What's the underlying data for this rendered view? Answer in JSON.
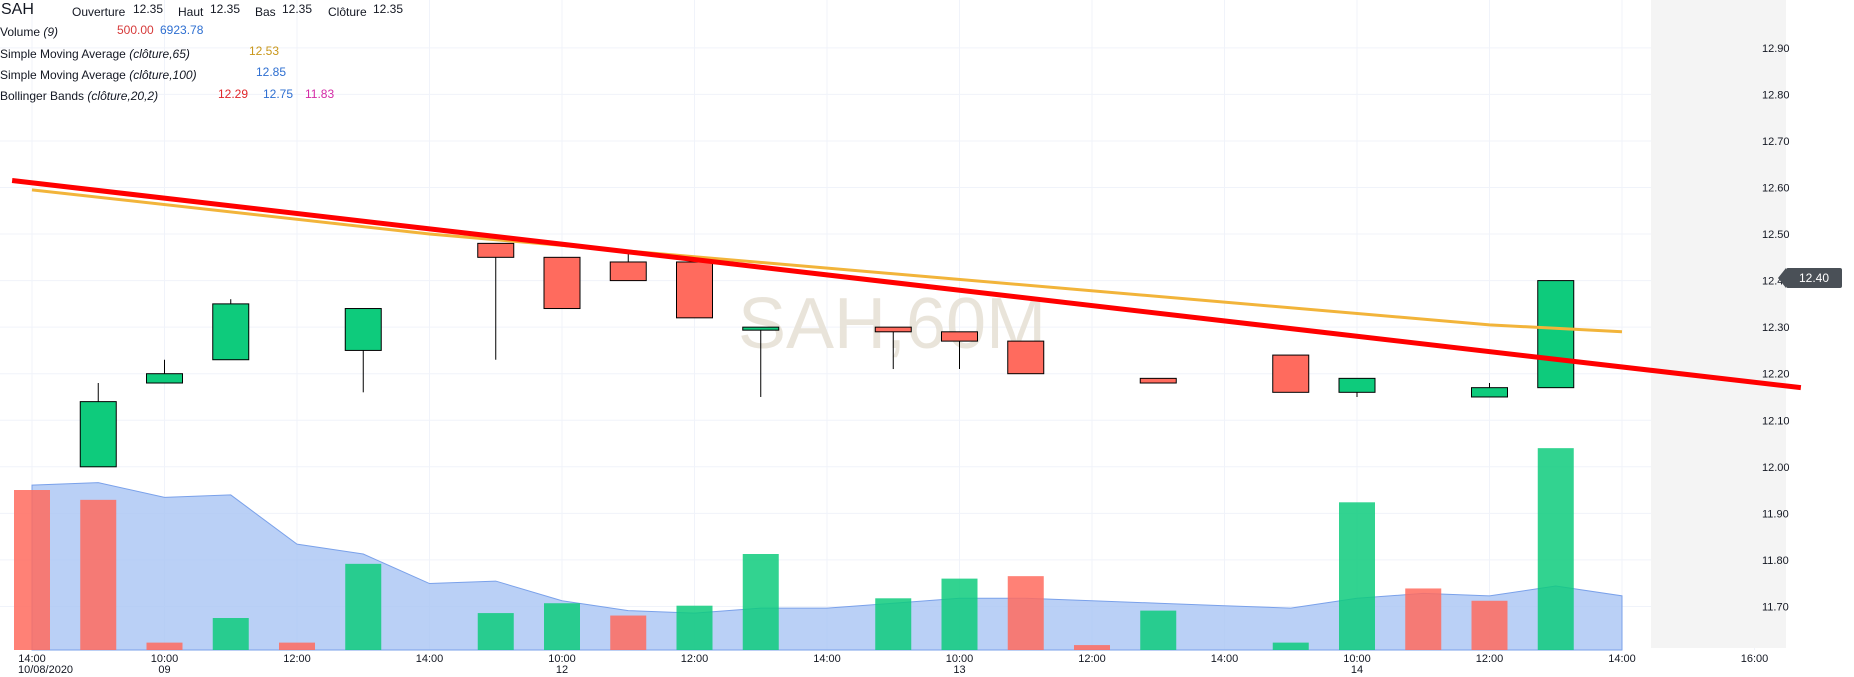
{
  "header": {
    "symbol": "SAH",
    "open_label": "Ouverture",
    "open_value": "12.35",
    "high_label": "Haut",
    "high_value": "12.35",
    "low_label": "Bas",
    "low_value": "12.35",
    "close_label": "Clôture",
    "close_value": "12.35"
  },
  "indicators": {
    "volume": {
      "label": "Volume",
      "params": "(9)",
      "value1": "500.00",
      "value2": "6923.78"
    },
    "sma65": {
      "label": "Simple Moving Average",
      "params": "(clôture,65)",
      "value": "12.53"
    },
    "sma100": {
      "label": "Simple Moving Average",
      "params": "(clôture,100)",
      "value": "12.85"
    },
    "bollinger": {
      "label": "Bollinger Bands",
      "params": "(clôture,20,2)",
      "middle": "12.29",
      "upper": "12.75",
      "lower": "11.83"
    }
  },
  "watermark": "SAH,60M",
  "last_price_tag": "12.40",
  "colors": {
    "up": "#0ecb7c",
    "down": "#ff6b5e",
    "trendline": "#ff0000",
    "sma": "#f2b43a",
    "volume_area": "#a9c4f4",
    "open_value": "#d63a3a",
    "blue_value": "#2e6fd1",
    "sma65_value": "#c9971a",
    "bb_middle": "#e0262a",
    "bb_lower": "#d42aa6"
  },
  "chart_data": {
    "type": "candlestick",
    "ylim": [
      11.6,
      12.97
    ],
    "y_ticks": [
      "11.70",
      "11.80",
      "11.90",
      "12.00",
      "12.10",
      "12.20",
      "12.30",
      "12.40",
      "12.50",
      "12.60",
      "12.70",
      "12.80",
      "12.90"
    ],
    "x_ticks": [
      {
        "time": "14:00",
        "date": "10/08/2020",
        "slot": 0
      },
      {
        "time": "10:00",
        "date": "09",
        "slot": 2
      },
      {
        "time": "12:00",
        "date": "",
        "slot": 4
      },
      {
        "time": "14:00",
        "date": "",
        "slot": 6
      },
      {
        "time": "10:00",
        "date": "12",
        "slot": 8
      },
      {
        "time": "12:00",
        "date": "",
        "slot": 10
      },
      {
        "time": "14:00",
        "date": "",
        "slot": 12
      },
      {
        "time": "10:00",
        "date": "13",
        "slot": 14
      },
      {
        "time": "12:00",
        "date": "",
        "slot": 16
      },
      {
        "time": "14:00",
        "date": "",
        "slot": 18
      },
      {
        "time": "10:00",
        "date": "14",
        "slot": 20
      },
      {
        "time": "12:00",
        "date": "",
        "slot": 22
      },
      {
        "time": "14:00",
        "date": "",
        "slot": 24
      },
      {
        "time": "16:00",
        "date": "",
        "slot": 26
      }
    ],
    "candles": [
      {
        "slot": 1,
        "open": 12.0,
        "high": 12.18,
        "low": 12.0,
        "close": 12.14
      },
      {
        "slot": 2,
        "open": 12.18,
        "high": 12.23,
        "low": 12.18,
        "close": 12.2
      },
      {
        "slot": 3,
        "open": 12.23,
        "high": 12.36,
        "low": 12.23,
        "close": 12.35
      },
      {
        "slot": 5,
        "open": 12.25,
        "high": 12.34,
        "low": 12.16,
        "close": 12.34
      },
      {
        "slot": 7,
        "open": 12.48,
        "high": 12.48,
        "low": 12.23,
        "close": 12.45
      },
      {
        "slot": 8,
        "open": 12.45,
        "high": 12.45,
        "low": 12.34,
        "close": 12.34
      },
      {
        "slot": 9,
        "open": 12.44,
        "high": 12.46,
        "low": 12.4,
        "close": 12.4
      },
      {
        "slot": 10,
        "open": 12.44,
        "high": 12.44,
        "low": 12.32,
        "close": 12.32
      },
      {
        "slot": 11,
        "open": 12.3,
        "high": 12.3,
        "low": 12.15,
        "close": 12.3
      },
      {
        "slot": 13,
        "open": 12.3,
        "high": 12.3,
        "low": 12.21,
        "close": 12.29
      },
      {
        "slot": 14,
        "open": 12.29,
        "high": 12.29,
        "low": 12.21,
        "close": 12.27
      },
      {
        "slot": 15,
        "open": 12.27,
        "high": 12.27,
        "low": 12.2,
        "close": 12.2
      },
      {
        "slot": 17,
        "open": 12.19,
        "high": 12.19,
        "low": 12.18,
        "close": 12.18
      },
      {
        "slot": 19,
        "open": 12.24,
        "high": 12.24,
        "low": 12.16,
        "close": 12.16
      },
      {
        "slot": 20,
        "open": 12.16,
        "high": 12.19,
        "low": 12.15,
        "close": 12.19
      },
      {
        "slot": 22,
        "open": 12.15,
        "high": 12.18,
        "low": 12.15,
        "close": 12.17
      },
      {
        "slot": 23,
        "open": 12.17,
        "high": 12.4,
        "low": 12.17,
        "close": 12.4
      }
    ],
    "volume": [
      {
        "slot": 0,
        "value": 6500,
        "dir": "down"
      },
      {
        "slot": 1,
        "value": 6100,
        "dir": "down"
      },
      {
        "slot": 2,
        "value": 300,
        "dir": "down"
      },
      {
        "slot": 3,
        "value": 1300,
        "dir": "up"
      },
      {
        "slot": 4,
        "value": 300,
        "dir": "down"
      },
      {
        "slot": 5,
        "value": 3500,
        "dir": "up"
      },
      {
        "slot": 7,
        "value": 1500,
        "dir": "up"
      },
      {
        "slot": 8,
        "value": 1900,
        "dir": "up"
      },
      {
        "slot": 9,
        "value": 1400,
        "dir": "down"
      },
      {
        "slot": 10,
        "value": 1800,
        "dir": "up"
      },
      {
        "slot": 11,
        "value": 3900,
        "dir": "up"
      },
      {
        "slot": 13,
        "value": 2100,
        "dir": "up"
      },
      {
        "slot": 14,
        "value": 2900,
        "dir": "up"
      },
      {
        "slot": 15,
        "value": 3000,
        "dir": "down"
      },
      {
        "slot": 16,
        "value": 200,
        "dir": "down"
      },
      {
        "slot": 17,
        "value": 1600,
        "dir": "up"
      },
      {
        "slot": 19,
        "value": 300,
        "dir": "up"
      },
      {
        "slot": 20,
        "value": 6000,
        "dir": "up"
      },
      {
        "slot": 21,
        "value": 2500,
        "dir": "down"
      },
      {
        "slot": 22,
        "value": 2000,
        "dir": "down"
      },
      {
        "slot": 23,
        "value": 8200,
        "dir": "up"
      }
    ],
    "volume_ma": [
      {
        "slot": 0,
        "value": 6700
      },
      {
        "slot": 1,
        "value": 6800
      },
      {
        "slot": 2,
        "value": 6200
      },
      {
        "slot": 3,
        "value": 6300
      },
      {
        "slot": 4,
        "value": 4300
      },
      {
        "slot": 5,
        "value": 3900
      },
      {
        "slot": 6,
        "value": 2700
      },
      {
        "slot": 7,
        "value": 2800
      },
      {
        "slot": 8,
        "value": 2000
      },
      {
        "slot": 9,
        "value": 1600
      },
      {
        "slot": 10,
        "value": 1500
      },
      {
        "slot": 11,
        "value": 1700
      },
      {
        "slot": 12,
        "value": 1700
      },
      {
        "slot": 13,
        "value": 1900
      },
      {
        "slot": 14,
        "value": 2100
      },
      {
        "slot": 15,
        "value": 2100
      },
      {
        "slot": 16,
        "value": 2000
      },
      {
        "slot": 17,
        "value": 1900
      },
      {
        "slot": 18,
        "value": 1800
      },
      {
        "slot": 19,
        "value": 1700
      },
      {
        "slot": 20,
        "value": 2100
      },
      {
        "slot": 21,
        "value": 2300
      },
      {
        "slot": 22,
        "value": 2200
      },
      {
        "slot": 23,
        "value": 2600
      },
      {
        "slot": 24,
        "value": 2200
      }
    ],
    "volume_max": 13000,
    "sma_line": [
      {
        "slot": 0,
        "value": 12.595
      },
      {
        "slot": 6,
        "value": 12.5
      },
      {
        "slot": 22,
        "value": 12.305
      },
      {
        "slot": 24,
        "value": 12.29
      }
    ],
    "trendline": [
      {
        "slot": -0.3,
        "value": 12.615
      },
      {
        "slot": 26.7,
        "value": 12.17
      }
    ]
  }
}
